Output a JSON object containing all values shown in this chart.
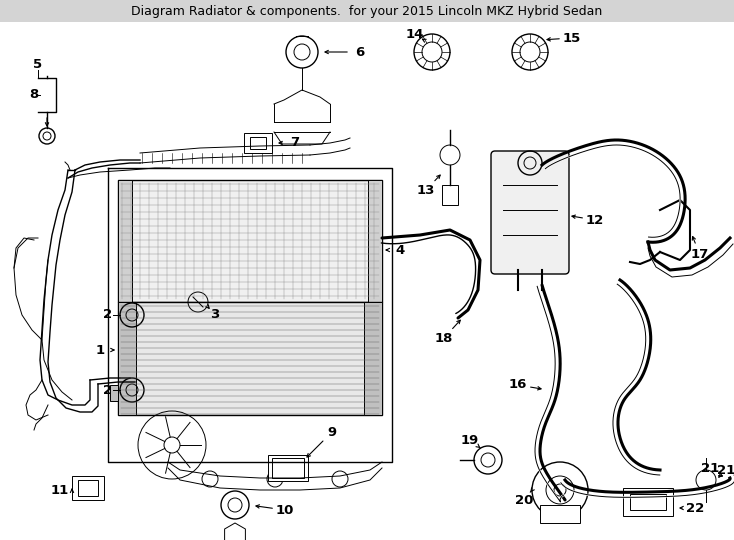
{
  "title": "Diagram Radiator & components.",
  "subtitle": "for your 2015 Lincoln MKZ Hybrid Sedan",
  "background_color": "#ffffff",
  "line_color": "#000000",
  "fig_width": 7.34,
  "fig_height": 5.4,
  "dpi": 100,
  "title_bar_color": "#d4d4d4",
  "title_fontsize": 9,
  "label_fontsize": 9.5,
  "lw_thin": 0.7,
  "lw_med": 1.0,
  "lw_thick": 1.5,
  "lw_hose": 2.2
}
